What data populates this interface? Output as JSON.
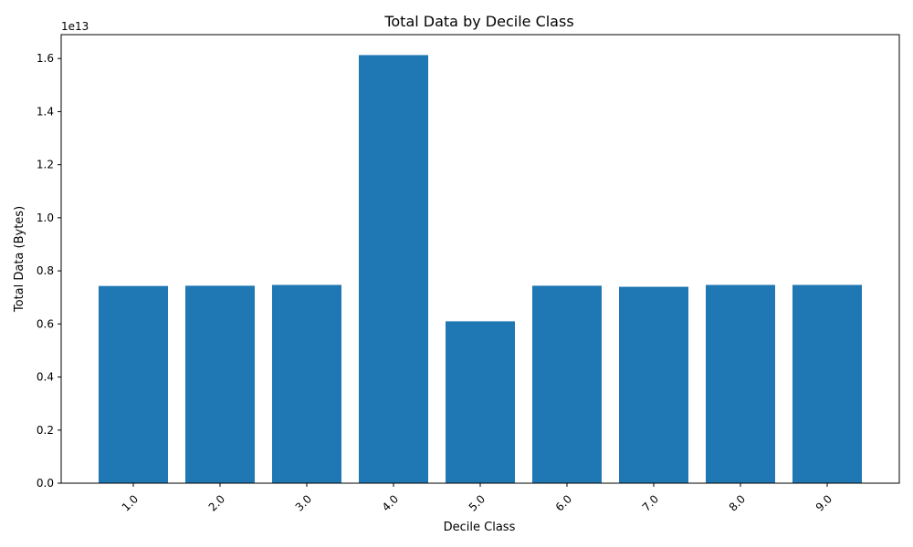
{
  "chart_data": {
    "type": "bar",
    "title": "Total Data by Decile Class",
    "xlabel": "Decile Class",
    "ylabel": "Total Data (Bytes)",
    "offset_label": "1e13",
    "categories": [
      "1.0",
      "2.0",
      "3.0",
      "4.0",
      "5.0",
      "6.0",
      "7.0",
      "8.0",
      "9.0"
    ],
    "values": [
      7430000000000.0,
      7440000000000.0,
      7470000000000.0,
      16130000000000.0,
      6100000000000.0,
      7440000000000.0,
      7400000000000.0,
      7470000000000.0,
      7470000000000.0
    ],
    "ylim": [
      0,
      16900000000000.0
    ],
    "yticks": [
      0,
      2000000000000.0,
      4000000000000.0,
      6000000000000.0,
      8000000000000.0,
      10000000000000.0,
      12000000000000.0,
      14000000000000.0,
      16000000000000.0
    ],
    "ytick_labels": [
      "0.0",
      "0.2",
      "0.4",
      "0.6",
      "0.8",
      "1.0",
      "1.2",
      "1.4",
      "1.6"
    ],
    "xtick_rotation": 45,
    "grid": false,
    "legend": "none",
    "bar_color": "#1f77b4"
  }
}
